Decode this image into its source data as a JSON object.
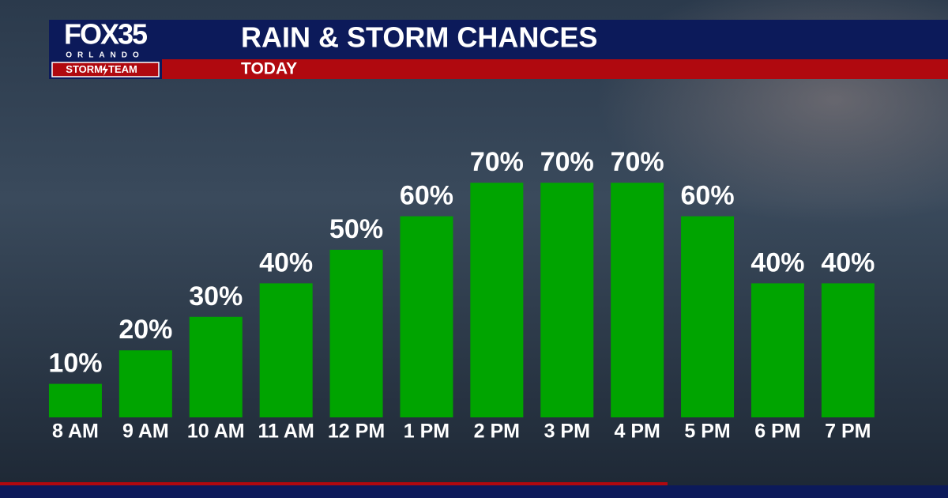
{
  "logo": {
    "name": "FOX35",
    "market": "ORLANDO",
    "team_left": "STORM",
    "team_right": "TEAM"
  },
  "chart_data": {
    "type": "bar",
    "title": "RAIN & STORM CHANCES",
    "subtitle": "TODAY",
    "categories": [
      "8 AM",
      "9 AM",
      "10 AM",
      "11 AM",
      "12 PM",
      "1 PM",
      "2 PM",
      "3 PM",
      "4 PM",
      "5 PM",
      "6 PM",
      "7 PM"
    ],
    "values": [
      10,
      20,
      30,
      40,
      50,
      60,
      70,
      70,
      70,
      60,
      40,
      40
    ],
    "value_labels": [
      "10%",
      "20%",
      "30%",
      "40%",
      "50%",
      "60%",
      "70%",
      "70%",
      "70%",
      "60%",
      "40%",
      "40%"
    ],
    "color": "#00a400",
    "ylim": [
      0,
      100
    ]
  }
}
